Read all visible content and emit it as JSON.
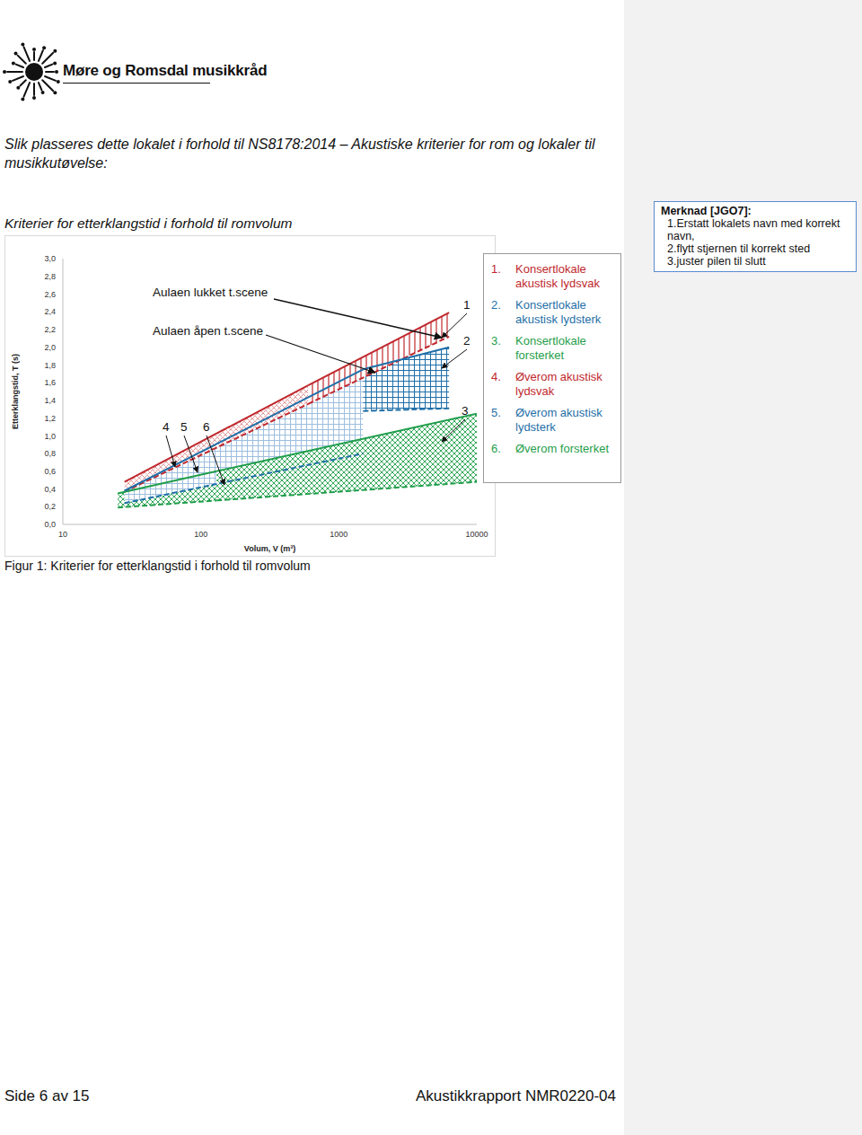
{
  "header": {
    "logo_text": "Møre og Romsdal musikkråd"
  },
  "intro": "Slik plasseres dette lokalet i forhold til NS8178:2014 – Akustiske kriterier for rom og lokaler til musikkutøvelse:",
  "chart_data": {
    "type": "area",
    "title": "Kriterier for etterklangstid i forhold til romvolum",
    "x_label": "Volum, V (m³)",
    "y_label": "Etterklangstid, T (s)",
    "log": "x",
    "grid": false,
    "xlim": [
      10,
      10000
    ],
    "xticks": [
      10,
      100,
      1000,
      10000
    ],
    "ylim": [
      0,
      3
    ],
    "yticks": [
      {
        "value": 0,
        "label": "0,0"
      },
      {
        "value": 0.2,
        "label": "0,2"
      },
      {
        "value": 0.4,
        "label": "0,4"
      },
      {
        "value": 0.6,
        "label": "0,6"
      },
      {
        "value": 0.8,
        "label": "0,8"
      },
      {
        "value": 1,
        "label": "1,0"
      },
      {
        "value": 1.2,
        "label": "1,2"
      },
      {
        "value": 1.4,
        "label": "1,4"
      },
      {
        "value": 1.6,
        "label": "1,6"
      },
      {
        "value": 1.8,
        "label": "1,8"
      },
      {
        "value": 2,
        "label": "2,0"
      },
      {
        "value": 2.2,
        "label": "2,2"
      },
      {
        "value": 2.4,
        "label": "2,4"
      },
      {
        "value": 2.6,
        "label": "2,6"
      },
      {
        "value": 2.8,
        "label": "2,8"
      },
      {
        "value": 3,
        "label": "3,0"
      }
    ],
    "series": [
      {
        "name": "Konsertlokale akustisk lydsvak",
        "number": "1",
        "legend_prefix": "1.",
        "color": "#c0282d",
        "x": [
          600,
          6300
        ],
        "lower": [
          1.36,
          2.12
        ],
        "upper": [
          1.57,
          2.39
        ]
      },
      {
        "name": "Konsertlokale akustisk lydsterk",
        "number": "2",
        "legend_prefix": "2.",
        "color": "#1f6fa8",
        "x": [
          1500,
          6300
        ],
        "lower": [
          1.28,
          1.31
        ],
        "upper": [
          1.75,
          2.0
        ]
      },
      {
        "name": "Konsertlokale forsterket",
        "number": "3",
        "legend_prefix": "3.",
        "color": "#1f9e4a",
        "x": [
          130,
          10000
        ],
        "lower": [
          0.27,
          0.48
        ],
        "upper": [
          0.6,
          1.25
        ]
      },
      {
        "name": "Øverom akustisk lydsvak",
        "number": "4",
        "legend_prefix": "4.",
        "color": "#c0282d",
        "x": [
          28,
          600
        ],
        "lower": [
          0.37,
          1.36
        ],
        "upper": [
          0.48,
          1.57
        ]
      },
      {
        "name": "Øverom akustisk lydsterk",
        "number": "5",
        "legend_prefix": "5.",
        "color": "#1f6fa8",
        "x": [
          28,
          1500
        ],
        "lower": [
          0.24,
          0.8
        ],
        "upper": [
          0.38,
          1.75
        ]
      },
      {
        "name": "Øverom forsterket",
        "number": "6",
        "legend_prefix": "6.",
        "color": "#1f9e4a",
        "x": [
          25,
          130
        ],
        "lower": [
          0.19,
          0.27
        ],
        "upper": [
          0.35,
          0.6
        ]
      }
    ],
    "annotations": [
      "Aulaen lukket t.scene",
      "Aulaen åpen t.scene"
    ]
  },
  "caption": "Figur 1: Kriterier for etterklangstid i forhold til romvolum",
  "comment": {
    "title": "Merknad [JGO7]:",
    "lines": [
      "1.Erstatt lokalets navn med korrekt navn,",
      "2.flytt stjernen til korrekt sted",
      "3.juster pilen til slutt"
    ]
  },
  "footer": {
    "page": "Side 6 av 15",
    "report": "Akustikkrapport NMR0220-04"
  }
}
